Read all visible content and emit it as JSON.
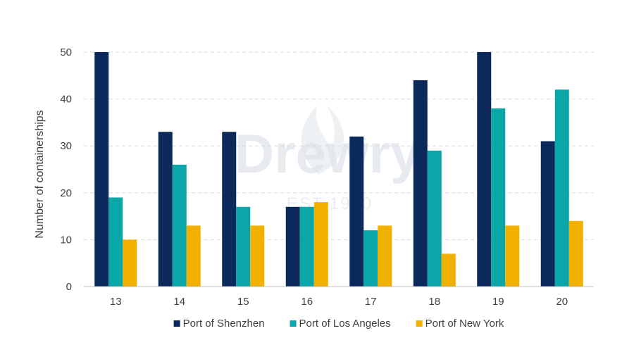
{
  "watermark": {
    "brand": "Drewry",
    "tagline": "EST 1970"
  },
  "chart_data": {
    "type": "bar",
    "title": "",
    "xlabel": "",
    "ylabel": "Number of containerships",
    "categories": [
      "13",
      "14",
      "15",
      "16",
      "17",
      "18",
      "19",
      "20"
    ],
    "ylim": [
      0,
      50
    ],
    "yticks": [
      0,
      10,
      20,
      30,
      40,
      50
    ],
    "grid": true,
    "legend_position": "bottom",
    "series": [
      {
        "name": "Port of Shenzhen",
        "color": "#0b2a5b",
        "values": [
          50,
          33,
          33,
          17,
          32,
          44,
          50,
          31
        ]
      },
      {
        "name": "Port of Los Angeles",
        "color": "#0aa6a8",
        "values": [
          19,
          26,
          17,
          17,
          12,
          29,
          38,
          42
        ]
      },
      {
        "name": "Port of New York",
        "color": "#f2b100",
        "values": [
          10,
          13,
          13,
          18,
          13,
          7,
          13,
          14
        ]
      }
    ]
  }
}
